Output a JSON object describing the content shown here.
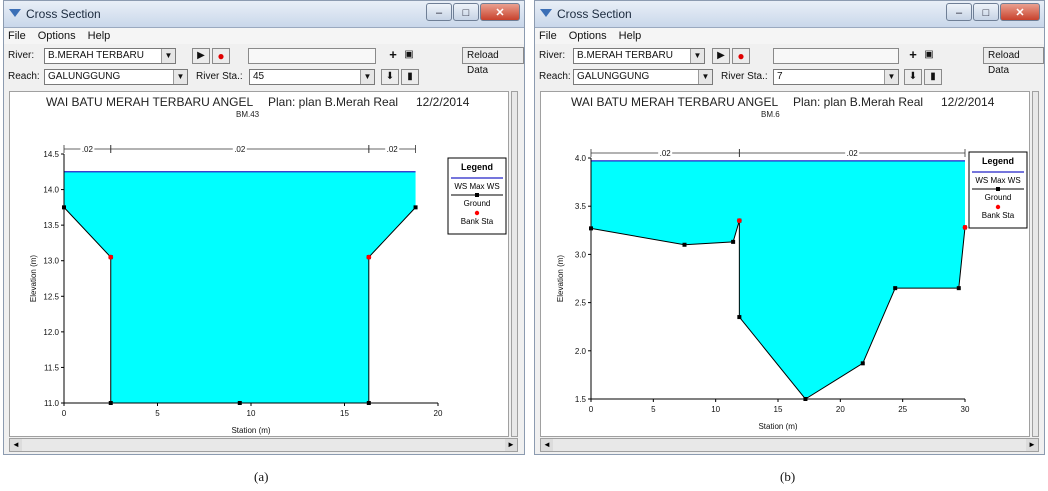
{
  "windowA": {
    "title": "Cross Section",
    "menu": [
      "File",
      "Options",
      "Help"
    ],
    "river_label": "River:",
    "river_value": "B.MERAH TERBARU",
    "reach_label": "Reach:",
    "reach_value": "GALUNGGUNG",
    "river_sta_label": "River Sta.:",
    "river_sta_value": "45",
    "reload_label": "Reload Data",
    "caption": "(a)"
  },
  "windowB": {
    "title": "Cross Section",
    "menu": [
      "File",
      "Options",
      "Help"
    ],
    "river_label": "River:",
    "river_value": "B.MERAH TERBARU",
    "reach_label": "Reach:",
    "reach_value": "GALUNGGUNG",
    "river_sta_label": "River Sta.:",
    "river_sta_value": "7",
    "reload_label": "Reload Data",
    "caption": "(b)"
  },
  "icons": {
    "play": "play-icon",
    "record": "record-icon",
    "add": "plus-icon",
    "camera": "camera-icon",
    "down": "down-arrow-icon",
    "bookmark": "bookmark-icon",
    "minimize": "minimize-icon",
    "maximize": "maximize-icon",
    "close": "close-icon"
  },
  "colors": {
    "water": "#00ffff",
    "ws_line": "#2323c8",
    "ground": "#000000",
    "bank": "#ff0000"
  },
  "chart_data": [
    {
      "type": "area",
      "title": "WAI BATU MERAH TERBARU ANGEL",
      "plan": "Plan: plan B.Merah Real",
      "date": "12/2/2014",
      "subtitle": "BM.43",
      "xlabel": "Station (m)",
      "ylabel": "Elevation (m)",
      "xlim": [
        0,
        20
      ],
      "ylim": [
        11.0,
        14.5
      ],
      "xticks": [
        0,
        5,
        10,
        15,
        20
      ],
      "yticks": [
        11.0,
        11.5,
        12.0,
        12.5,
        13.0,
        13.5,
        14.0,
        14.5
      ],
      "ws_elevation": 14.25,
      "ground": [
        [
          0,
          13.75
        ],
        [
          2.5,
          13.05
        ],
        [
          2.5,
          11.0
        ],
        [
          9.4,
          11.0
        ],
        [
          16.3,
          11.0
        ],
        [
          16.3,
          13.05
        ],
        [
          18.8,
          13.75
        ]
      ],
      "bank_stations": [
        [
          2.5,
          13.05
        ],
        [
          16.3,
          13.05
        ]
      ],
      "manning": [
        {
          "from": 0,
          "to": 2.5,
          "n": ".02"
        },
        {
          "from": 2.5,
          "to": 16.3,
          "n": ".02"
        },
        {
          "from": 16.3,
          "to": 18.8,
          "n": ".02"
        }
      ],
      "legend": [
        "Legend",
        "WS Max WS",
        "Ground",
        "Bank Sta"
      ],
      "legend_position": "top-right"
    },
    {
      "type": "area",
      "title": "WAI BATU MERAH TERBARU ANGEL",
      "plan": "Plan: plan B.Merah Real",
      "date": "12/2/2014",
      "subtitle": "BM.6",
      "xlabel": "Station (m)",
      "ylabel": "Elevation (m)",
      "xlim": [
        0,
        30
      ],
      "ylim": [
        1.5,
        4.0
      ],
      "xticks": [
        0,
        5,
        10,
        15,
        20,
        25,
        30
      ],
      "yticks": [
        1.5,
        2.0,
        2.5,
        3.0,
        3.5,
        4.0
      ],
      "ws_elevation": 3.97,
      "ground": [
        [
          0,
          3.27
        ],
        [
          7.5,
          3.1
        ],
        [
          11.4,
          3.13
        ],
        [
          11.9,
          3.35
        ],
        [
          11.9,
          2.35
        ],
        [
          17.2,
          1.5
        ],
        [
          21.8,
          1.87
        ],
        [
          24.4,
          2.65
        ],
        [
          29.5,
          2.65
        ],
        [
          30,
          3.28
        ]
      ],
      "bank_stations": [
        [
          11.9,
          3.35
        ],
        [
          30,
          3.28
        ]
      ],
      "manning": [
        {
          "from": 0,
          "to": 11.9,
          "n": ".02"
        },
        {
          "from": 11.9,
          "to": 30,
          "n": ".02"
        }
      ],
      "legend": [
        "Legend",
        "WS Max WS",
        "Ground",
        "Bank Sta"
      ],
      "legend_position": "top-right"
    }
  ]
}
